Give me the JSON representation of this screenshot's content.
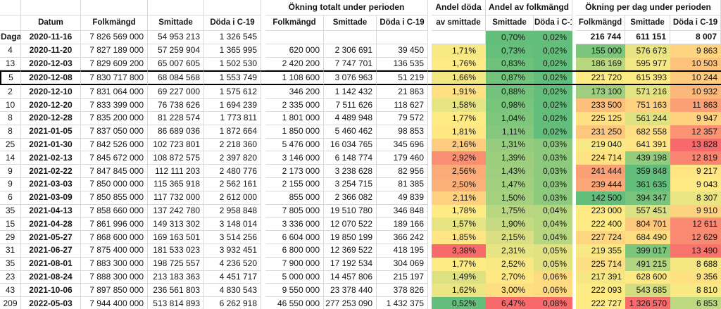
{
  "headers": {
    "row_label": "Dagar",
    "datum": "Datum",
    "folkmangd": "Folkmängd",
    "smittade": "Smittade",
    "doda": "Döda i C-19",
    "group_total": "Ökning totalt under perioden",
    "group_share_dead_1": "Andel döda",
    "group_share_dead_2": "av smittade",
    "group_share_pop": "Andel av folkmängd",
    "group_per_day": "Ökning per dag under perioden"
  },
  "colors": {
    "scale_min_green": "#63BE7B",
    "scale_mid_yellow": "#FFEB84",
    "scale_max_red": "#F8696B",
    "gridline": "#d8d8d8",
    "outline_row_border": "#000000"
  },
  "rows": [
    {
      "b1": true,
      "outlined": false,
      "cells": [
        "Dagar",
        "2020-11-16",
        "7 826 569 000",
        "54 953 213",
        "1 326 545",
        "",
        "",
        "",
        "",
        "0,70%",
        "0,02%",
        "216 744",
        "611 151",
        "8 007"
      ],
      "bg": [
        null,
        "#63BE7B",
        "#63BE7B",
        null,
        null,
        null
      ]
    },
    {
      "cells": [
        "4",
        "2020-11-20",
        "7 827 189 000",
        "57 259 904",
        "1 365 995",
        "620 000",
        "2 306 691",
        "39 450",
        "1,71%",
        "0,73%",
        "0,02%",
        "155 000",
        "576 673",
        "9 863"
      ],
      "bg": [
        "#F7E984",
        "#66BF7B",
        "#63BE7B",
        "#7BC57C",
        "#E8E483",
        "#FED480"
      ]
    },
    {
      "cells": [
        "13",
        "2020-12-03",
        "7 829 609 200",
        "65 007 605",
        "1 502 530",
        "2 420 200",
        "7 747 701",
        "136 535",
        "1,76%",
        "0,83%",
        "0,02%",
        "186 169",
        "595 977",
        "10 503"
      ],
      "bg": [
        "#FDEA84",
        "#6FC27C",
        "#63BE7B",
        "#B8D780",
        "#F3E883",
        "#FDC37C"
      ]
    },
    {
      "outlined": true,
      "cells": [
        "5",
        "2020-12-08",
        "7 830 717 800",
        "68 084 568",
        "1 553 749",
        "1 108 600",
        "3 076 963",
        "51 219",
        "1,66%",
        "0,87%",
        "0,02%",
        "221 720",
        "615 393",
        "10 244"
      ],
      "bg": [
        "#F1E783",
        "#73C37C",
        "#63BE7B",
        "#FDEB84",
        "#FFEB84",
        "#FDCA7E"
      ]
    },
    {
      "cells": [
        "2",
        "2020-12-10",
        "7 831 064 000",
        "69 227 000",
        "1 575 612",
        "346 200",
        "1 142 432",
        "21 863",
        "1,91%",
        "0,88%",
        "0,02%",
        "173 100",
        "571 216",
        "10 932"
      ],
      "bg": [
        "#FEE082",
        "#74C37C",
        "#63BE7B",
        "#9FCF7E",
        "#E4E382",
        "#FCB87A"
      ]
    },
    {
      "cells": [
        "10",
        "2020-12-20",
        "7 833 399 000",
        "76 738 626",
        "1 694 239",
        "2 335 000",
        "7 511 626",
        "118 627",
        "1,58%",
        "0,98%",
        "0,02%",
        "233 500",
        "751 163",
        "11 863"
      ],
      "bg": [
        "#E7E483",
        "#7AC57C",
        "#63BE7B",
        "#FDBF7C",
        "#FED27F",
        "#FB9F75"
      ]
    },
    {
      "cells": [
        "8",
        "2020-12-28",
        "7 835 200 000",
        "81 228 574",
        "1 773 811",
        "1 801 000",
        "4 489 948",
        "79 572",
        "1,77%",
        "1,04%",
        "0,02%",
        "225 125",
        "561 244",
        "9 947"
      ],
      "bg": [
        "#FEEB84",
        "#7FC67D",
        "#63BE7B",
        "#FFE082",
        "#DEE282",
        "#FED27F"
      ]
    },
    {
      "cells": [
        "8",
        "2021-01-05",
        "7 837 050 000",
        "86 689 036",
        "1 872 664",
        "1 850 000",
        "5 460 462",
        "98 853",
        "1,81%",
        "1,11%",
        "0,02%",
        "231 250",
        "682 558",
        "12 357"
      ],
      "bg": [
        "#FFE883",
        "#85C87D",
        "#63BE7B",
        "#FDC87D",
        "#FEDF82",
        "#FA9273"
      ]
    },
    {
      "cells": [
        "25",
        "2021-01-30",
        "7 842 526 000",
        "102 723 801",
        "2 218 360",
        "5 476 000",
        "16 034 765",
        "345 696",
        "2,16%",
        "1,31%",
        "0,03%",
        "219 040",
        "641 391",
        "13 828"
      ],
      "bg": [
        "#FDCC7E",
        "#95CC7E",
        "#8DCA7D",
        "#F8E984",
        "#FFE683",
        "#F8696B"
      ]
    },
    {
      "cells": [
        "14",
        "2021-02-13",
        "7 845 672 000",
        "108 872 575",
        "2 397 820",
        "3 146 000",
        "6 148 774",
        "179 460",
        "2,92%",
        "1,39%",
        "0,03%",
        "224 714",
        "439 198",
        "12 819"
      ],
      "bg": [
        "#FA8E72",
        "#9CCE7E",
        "#8DCA7D",
        "#FFE282",
        "#94CC7E",
        "#FA8671"
      ]
    },
    {
      "cells": [
        "9",
        "2021-02-22",
        "7 847 845 000",
        "112 111 203",
        "2 480 776",
        "2 173 000",
        "3 238 628",
        "82 956",
        "2,56%",
        "1,43%",
        "0,03%",
        "241 444",
        "359 848",
        "9 217"
      ],
      "bg": [
        "#FCAB78",
        "#9FCF7E",
        "#8DCA7D",
        "#FB9F75",
        "#63BE7B",
        "#FFE583"
      ]
    },
    {
      "cells": [
        "9",
        "2021-03-03",
        "7 850 000 000",
        "115 365 918",
        "2 562 161",
        "2 155 000",
        "3 254 715",
        "81 385",
        "2,50%",
        "1,47%",
        "0,03%",
        "239 444",
        "361 635",
        "9 043"
      ],
      "bg": [
        "#FCB079",
        "#A2D07F",
        "#8DCA7D",
        "#FBA777",
        "#64BE7B",
        "#FFEA84"
      ]
    },
    {
      "cells": [
        "6",
        "2021-03-09",
        "7 850 855 000",
        "117 732 000",
        "2 612 000",
        "855 000",
        "2 366 082",
        "49 839",
        "2,11%",
        "1,50%",
        "0,03%",
        "142 500",
        "394 347",
        "8 307"
      ],
      "bg": [
        "#FED07F",
        "#A5D17F",
        "#8DCA7D",
        "#63BE7B",
        "#78C47C",
        "#E9E583"
      ]
    },
    {
      "cells": [
        "35",
        "2021-04-13",
        "7 858 660 000",
        "137 242 780",
        "2 958 848",
        "7 805 000",
        "19 510 780",
        "346 848",
        "1,78%",
        "1,75%",
        "0,04%",
        "223 000",
        "557 451",
        "9 910"
      ],
      "bg": [
        "#FFEB84",
        "#B9D780",
        "#B7D680",
        "#FFE983",
        "#DCE182",
        "#FED380"
      ]
    },
    {
      "cells": [
        "15",
        "2021-04-28",
        "7 861 996 000",
        "149 313 302",
        "3 148 014",
        "3 336 000",
        "12 070 522",
        "189 166",
        "1,57%",
        "1,90%",
        "0,04%",
        "222 400",
        "804 701",
        "12 611"
      ],
      "bg": [
        "#E6E483",
        "#C6DA81",
        "#B7D680",
        "#FFEB84",
        "#FDC87D",
        "#FA8B72"
      ]
    },
    {
      "cells": [
        "29",
        "2021-05-27",
        "7 868 600 000",
        "169 163 501",
        "3 514 256",
        "6 604 000",
        "19 850 199",
        "366 242",
        "1,85%",
        "2,15%",
        "0,04%",
        "227 724",
        "684 490",
        "12 629"
      ],
      "bg": [
        "#FFE583",
        "#DAE082",
        "#B7D680",
        "#FED680",
        "#FEDE82",
        "#FA8B72"
      ]
    },
    {
      "cells": [
        "31",
        "2021-06-27",
        "7 875 400 000",
        "181 533 023",
        "3 932 451",
        "6 800 000",
        "12 369 522",
        "418 195",
        "3,38%",
        "2,31%",
        "0,05%",
        "219 355",
        "399 017",
        "13 490"
      ],
      "bg": [
        "#F8696B",
        "#E7E483",
        "#E2E282",
        "#F9E984",
        "#7BC57C",
        "#F9746D"
      ]
    },
    {
      "cells": [
        "35",
        "2021-08-01",
        "7 883 300 000",
        "198 725 557",
        "4 236 520",
        "7 900 000",
        "17 192 534",
        "304 069",
        "1,77%",
        "2,52%",
        "0,05%",
        "225 714",
        "491 215",
        "8 688"
      ],
      "bg": [
        "#FEEB84",
        "#F8E984",
        "#E2E282",
        "#FEDE82",
        "#B3D580",
        "#F5E883"
      ]
    },
    {
      "cells": [
        "23",
        "2021-08-24",
        "7 888 300 000",
        "213 183 363",
        "4 451 717",
        "5 000 000",
        "14 457 806",
        "215 197",
        "1,49%",
        "2,70%",
        "0,06%",
        "217 391",
        "628 600",
        "9 356"
      ],
      "bg": [
        "#DCE182",
        "#FFE883",
        "#FEDA81",
        "#F5E883",
        "#FFE983",
        "#FEE282"
      ]
    },
    {
      "cells": [
        "43",
        "2021-10-06",
        "7 897 850 000",
        "236 561 803",
        "4 830 543",
        "9 550 000",
        "23 378 440",
        "378 826",
        "1,62%",
        "3,00%",
        "0,06%",
        "222 093",
        "543 685",
        "8 810"
      ],
      "bg": [
        "#ECE583",
        "#FEDE81",
        "#FEDA81",
        "#FEEB84",
        "#D3DE81",
        "#F9E984"
      ]
    },
    {
      "cells": [
        "209",
        "2022-05-03",
        "7 944 400 000",
        "513 814 893",
        "6 262 918",
        "46 550 000",
        "277 253 090",
        "1 432 375",
        "0,52%",
        "6,47%",
        "0,08%",
        "222 727",
        "1 326 570",
        "6 853"
      ],
      "bg": [
        "#63BE7B",
        "#F8696B",
        "#F8696B",
        "#FFEA84",
        "#F8696B",
        "#BCD880"
      ]
    }
  ]
}
